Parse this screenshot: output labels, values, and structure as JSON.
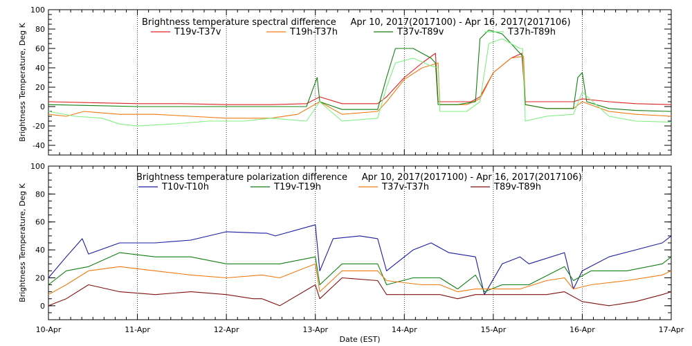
{
  "chart_data": [
    {
      "type": "line",
      "title": "Brightness temperature spectral difference     Apr 10, 2017(2017100) - Apr 16, 2017(2017106)",
      "ylabel": "Brightness Temperature, Deg K",
      "xlabel": "",
      "xlim": [
        0,
        7
      ],
      "ylim": [
        -50,
        100
      ],
      "yticks": [
        -40,
        -20,
        0,
        20,
        40,
        60,
        80,
        100
      ],
      "xticks": [
        0,
        1,
        2,
        3,
        4,
        5,
        6,
        7
      ],
      "xtick_labels": [
        "",
        "",
        "",
        "",
        "",
        "",
        "",
        ""
      ],
      "grid": "vertical dotted at each day",
      "legend_placement": "top",
      "series": [
        {
          "name": "T19v-T37v",
          "color": "#e02020",
          "x": [
            0,
            0.5,
            1,
            1.5,
            2,
            2.5,
            2.9,
            3.05,
            3.3,
            3.7,
            3.8,
            4.0,
            4.2,
            4.35,
            4.38,
            4.6,
            4.75,
            4.85,
            5.0,
            5.2,
            5.32,
            5.36,
            5.6,
            5.9,
            6.0,
            6.3,
            6.6,
            7.0
          ],
          "y": [
            5,
            4,
            3,
            3,
            2,
            2,
            3,
            10,
            3,
            3,
            10,
            30,
            45,
            55,
            5,
            5,
            5,
            10,
            35,
            50,
            55,
            5,
            5,
            5,
            8,
            5,
            3,
            2
          ]
        },
        {
          "name": "T19h-T37h",
          "color": "#f07a10",
          "x": [
            0,
            0.2,
            0.4,
            0.8,
            1.2,
            1.6,
            2.0,
            2.5,
            2.8,
            3.05,
            3.3,
            3.7,
            3.8,
            4.0,
            4.2,
            4.38,
            4.4,
            4.7,
            4.85,
            5.0,
            5.2,
            5.34,
            5.36,
            5.6,
            5.9,
            6.0,
            6.3,
            6.6,
            7.0
          ],
          "y": [
            -8,
            -10,
            -5,
            -8,
            -8,
            -10,
            -12,
            -12,
            -8,
            5,
            -8,
            -5,
            5,
            28,
            40,
            45,
            2,
            2,
            8,
            35,
            50,
            52,
            2,
            -2,
            -2,
            5,
            -5,
            -8,
            -10
          ]
        },
        {
          "name": "T37v-T89v",
          "color": "#108010",
          "x": [
            0,
            0.5,
            1,
            1.5,
            2,
            2.5,
            2.9,
            3.02,
            3.05,
            3.3,
            3.7,
            3.8,
            3.9,
            4.1,
            4.3,
            4.35,
            4.38,
            4.6,
            4.8,
            4.85,
            4.95,
            5.1,
            5.3,
            5.33,
            5.36,
            5.6,
            5.9,
            5.95,
            6.0,
            6.05,
            6.3,
            6.6,
            7.0
          ],
          "y": [
            2,
            1,
            0,
            0,
            0,
            0,
            0,
            30,
            5,
            -3,
            -3,
            30,
            60,
            60,
            50,
            45,
            2,
            2,
            5,
            70,
            79,
            75,
            55,
            52,
            2,
            -2,
            -2,
            30,
            35,
            5,
            -2,
            -4,
            -5
          ]
        },
        {
          "name": "T37h-T89h",
          "color": "#80f080",
          "x": [
            0,
            0.3,
            0.6,
            0.8,
            1.0,
            1.4,
            1.8,
            2.2,
            2.5,
            2.9,
            3.05,
            3.3,
            3.7,
            3.8,
            3.9,
            4.1,
            4.3,
            4.38,
            4.4,
            4.7,
            4.85,
            4.95,
            5.1,
            5.3,
            5.33,
            5.36,
            5.6,
            5.9,
            6.0,
            6.3,
            6.6,
            7.0
          ],
          "y": [
            -5,
            -10,
            -12,
            -18,
            -20,
            -18,
            -15,
            -15,
            -12,
            -15,
            5,
            -15,
            -12,
            20,
            45,
            50,
            42,
            40,
            -5,
            -5,
            5,
            65,
            70,
            60,
            60,
            -15,
            -10,
            -8,
            15,
            -10,
            -15,
            -16
          ]
        }
      ],
      "legend_labels": [
        "T19v-T37v",
        "T19h-T37h",
        "T37v-T89v",
        "T37h-T89h"
      ]
    },
    {
      "type": "line",
      "title": "Brightness temperature polarization difference     Apr 10, 2017(2017100) - Apr 16, 2017(2017106)",
      "ylabel": "Brightness Temperature, Deg K",
      "xlabel": "Date (EST)",
      "xlim": [
        0,
        7
      ],
      "ylim": [
        -10,
        100
      ],
      "yticks": [
        0,
        20,
        40,
        60,
        80,
        100
      ],
      "xticks": [
        0,
        1,
        2,
        3,
        4,
        5,
        6,
        7
      ],
      "xtick_labels": [
        "10-Apr",
        "11-Apr",
        "12-Apr",
        "13-Apr",
        "14-Apr",
        "15-Apr",
        "16-Apr",
        "17-Apr"
      ],
      "grid": "vertical dotted at each day",
      "legend_placement": "top",
      "series": [
        {
          "name": "T10v-T10h",
          "color": "#1a1aa0",
          "x": [
            0,
            0.2,
            0.38,
            0.45,
            0.8,
            1.2,
            1.6,
            2.0,
            2.4,
            2.45,
            2.55,
            3.0,
            3.05,
            3.2,
            3.5,
            3.7,
            3.8,
            4.1,
            4.3,
            4.5,
            4.8,
            4.9,
            5.1,
            5.3,
            5.4,
            5.8,
            5.9,
            6.0,
            6.3,
            6.6,
            6.9,
            7.0
          ],
          "y": [
            20,
            35,
            48,
            37,
            45,
            45,
            47,
            53,
            52,
            52,
            50,
            58,
            25,
            48,
            50,
            48,
            25,
            40,
            45,
            38,
            35,
            8,
            30,
            35,
            30,
            38,
            12,
            25,
            35,
            40,
            45,
            50
          ]
        },
        {
          "name": "T19v-T19h",
          "color": "#108010",
          "x": [
            0,
            0.2,
            0.45,
            0.8,
            1.2,
            1.6,
            2.0,
            2.4,
            2.6,
            3.0,
            3.05,
            3.3,
            3.7,
            3.8,
            4.1,
            4.4,
            4.6,
            4.8,
            4.9,
            5.1,
            5.3,
            5.4,
            5.8,
            5.9,
            6.1,
            6.5,
            6.9,
            7.0
          ],
          "y": [
            15,
            25,
            28,
            38,
            35,
            35,
            30,
            30,
            30,
            35,
            15,
            30,
            30,
            15,
            20,
            20,
            12,
            22,
            10,
            15,
            15,
            15,
            28,
            18,
            25,
            25,
            30,
            35
          ]
        },
        {
          "name": "T37v-T37h",
          "color": "#f07a10",
          "x": [
            0,
            0.2,
            0.45,
            0.8,
            1.2,
            1.6,
            2.0,
            2.4,
            2.6,
            3.0,
            3.05,
            3.3,
            3.7,
            3.8,
            4.2,
            4.4,
            4.6,
            4.8,
            5.0,
            5.3,
            5.6,
            5.8,
            5.9,
            6.1,
            6.5,
            6.9,
            7.0
          ],
          "y": [
            8,
            15,
            25,
            28,
            25,
            22,
            20,
            22,
            20,
            30,
            10,
            25,
            25,
            18,
            15,
            15,
            10,
            12,
            12,
            12,
            18,
            20,
            12,
            15,
            18,
            22,
            25
          ]
        },
        {
          "name": "T89v-T89h",
          "color": "#801010",
          "x": [
            0,
            0.2,
            0.45,
            0.8,
            1.2,
            1.6,
            2.0,
            2.3,
            2.4,
            2.6,
            3.0,
            3.05,
            3.3,
            3.7,
            3.8,
            4.2,
            4.4,
            4.6,
            4.8,
            5.0,
            5.3,
            5.6,
            5.8,
            6.0,
            6.3,
            6.6,
            6.9,
            7.0
          ],
          "y": [
            0,
            5,
            15,
            10,
            8,
            10,
            8,
            5,
            5,
            0,
            15,
            5,
            20,
            18,
            8,
            8,
            8,
            5,
            8,
            8,
            8,
            8,
            10,
            3,
            0,
            3,
            8,
            10
          ]
        }
      ],
      "legend_labels": [
        "T10v-T10h",
        "T19v-T19h",
        "T37v-T37h",
        "T89v-T89h"
      ]
    }
  ]
}
